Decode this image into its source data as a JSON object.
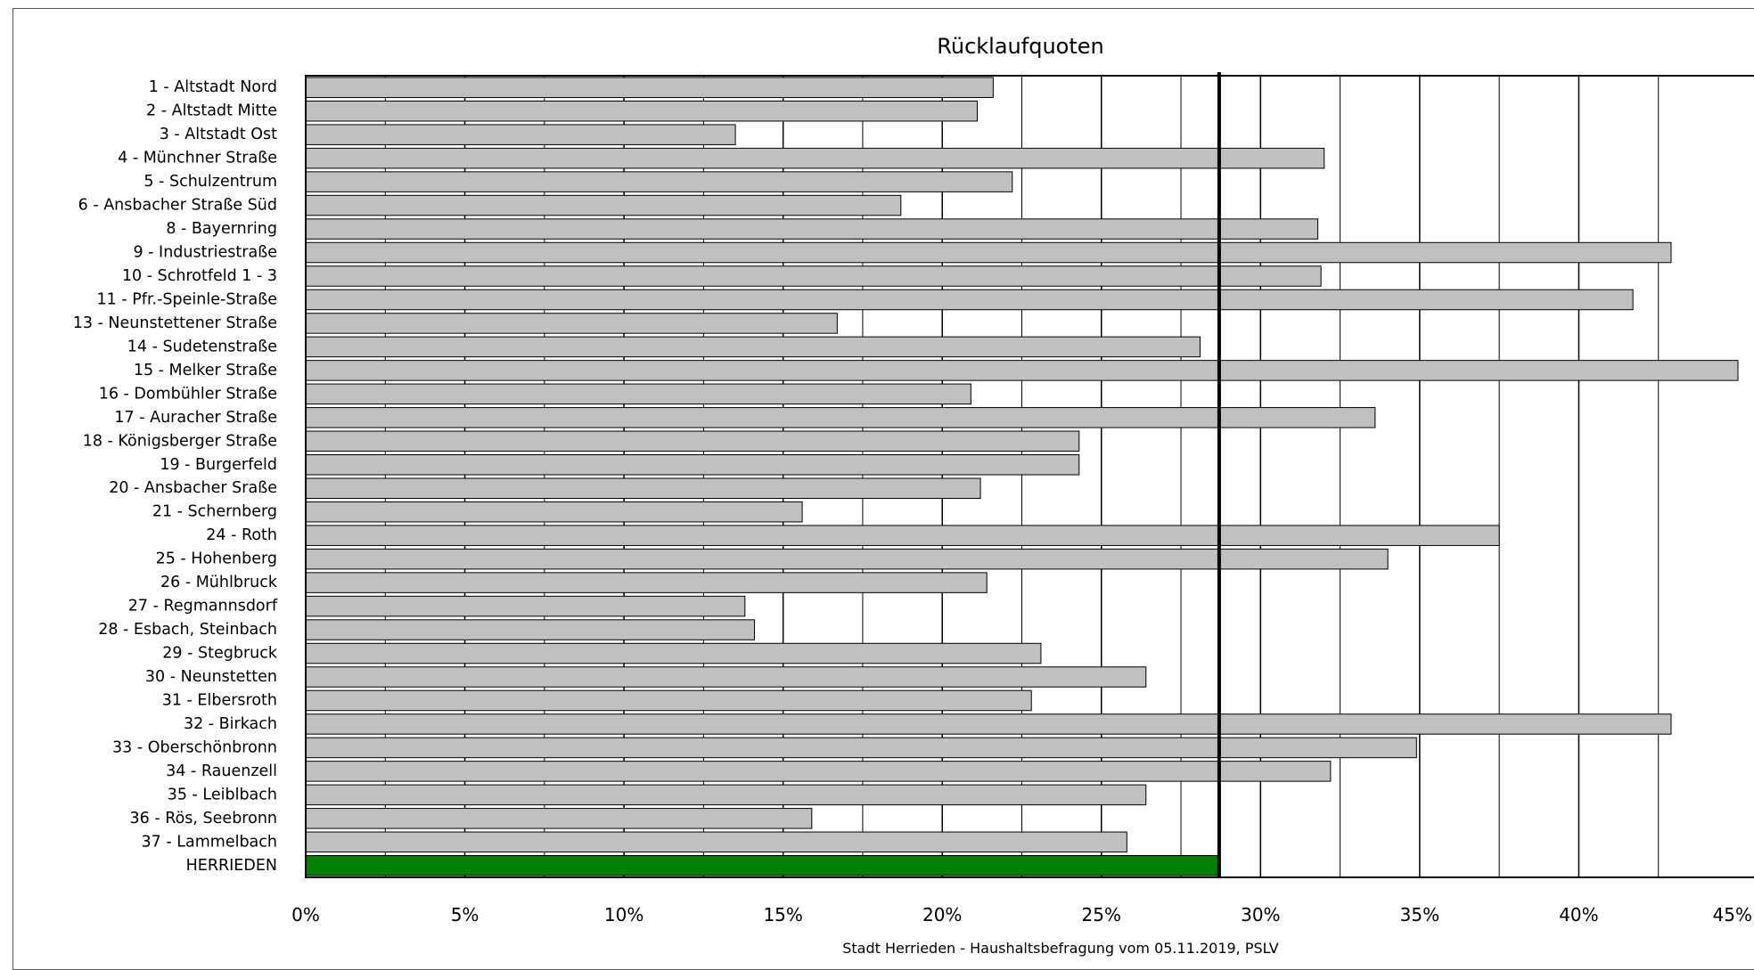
{
  "chart_data": {
    "type": "bar",
    "orientation": "horizontal",
    "title": "Rücklaufquoten",
    "caption": "Stadt Herrieden - Haushaltsbefragung vom 05.11.2019, PSLV",
    "xlabel": "",
    "ylabel": "",
    "xlim": [
      0,
      45
    ],
    "x_ticks": [
      "0%",
      "5%",
      "10%",
      "15%",
      "20%",
      "25%",
      "30%",
      "35%",
      "40%",
      "45%"
    ],
    "reference_line": 28.7,
    "grid": "vertical",
    "bar_color": "#c0c0c0",
    "highlight_color": "#008000",
    "categories": [
      "1 - Altstadt Nord",
      "2 - Altstadt Mitte",
      "3 - Altstadt Ost",
      "4 - Münchner Straße",
      "5 - Schulzentrum",
      "6 - Ansbacher Straße Süd",
      "8 - Bayernring",
      "9 - Industriestraße",
      "10 - Schrotfeld 1 - 3",
      "11 - Pfr.-Speinle-Straße",
      "13 - Neunstettener Straße",
      "14 - Sudetenstraße",
      "15 - Melker Straße",
      "16 - Dombühler Straße",
      "17 - Auracher Straße",
      "18 - Königsberger Straße",
      "19 - Burgerfeld",
      "20 - Ansbacher Sraße",
      "21 - Schernberg",
      "24 - Roth",
      "25 - Hohenberg",
      "26 - Mühlbruck",
      "27 - Regmannsdorf",
      "28 - Esbach, Steinbach",
      "29 - Stegbruck",
      "30 - Neunstetten",
      "31 - Elbersroth",
      "32 - Birkach",
      "33 - Oberschönbronn",
      "34 - Rauenzell",
      "35 - Leiblbach",
      "36 - Rös, Seebronn",
      "37 - Lammelbach",
      "HERRIEDEN"
    ],
    "values": [
      21.6,
      21.1,
      13.5,
      32.0,
      22.2,
      18.7,
      31.8,
      42.9,
      31.9,
      41.7,
      16.7,
      28.1,
      45.0,
      20.9,
      33.6,
      24.3,
      24.3,
      21.2,
      15.6,
      37.5,
      34.0,
      21.4,
      13.8,
      14.1,
      23.1,
      26.4,
      22.8,
      42.9,
      34.9,
      32.2,
      26.4,
      15.9,
      25.8,
      28.7
    ],
    "highlight_index": 33
  }
}
